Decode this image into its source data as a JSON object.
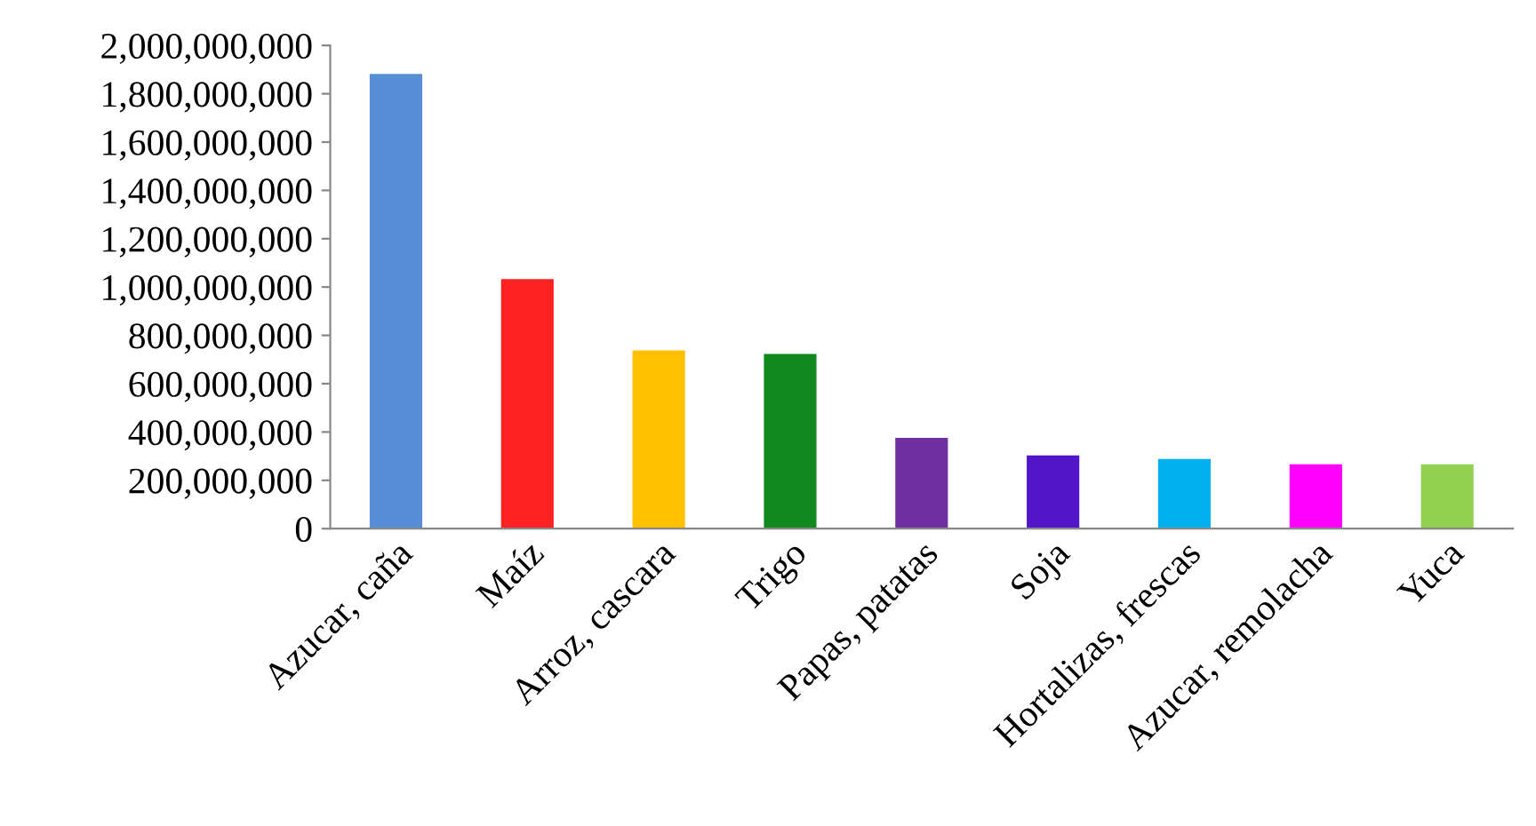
{
  "chart_data": {
    "type": "bar",
    "categories": [
      "Azucar, caña",
      "Maíz",
      "Arroz, cascara",
      "Trigo",
      "Papas, patatas",
      "Soja",
      "Hortalizas, frescas",
      "Azucar, remolacha",
      "Yuca"
    ],
    "values": [
      1882000000,
      1033000000,
      738000000,
      723000000,
      376000000,
      303000000,
      288000000,
      266000000,
      266000000
    ],
    "colors": [
      "#558ed5",
      "#ff2222",
      "#ffc000",
      "#12891f",
      "#7030a0",
      "#5216c8",
      "#00b0f0",
      "#ff00ff",
      "#92d050"
    ],
    "ylim": [
      0,
      2000000000
    ],
    "yticks": [
      {
        "value": 0,
        "label": "0"
      },
      {
        "value": 200000000,
        "label": "200,000,000"
      },
      {
        "value": 400000000,
        "label": "400,000,000"
      },
      {
        "value": 600000000,
        "label": "600,000,000"
      },
      {
        "value": 800000000,
        "label": "800,000,000"
      },
      {
        "value": 1000000000,
        "label": "1,000,000,000"
      },
      {
        "value": 1200000000,
        "label": "1,200,000,000"
      },
      {
        "value": 1400000000,
        "label": "1,400,000,000"
      },
      {
        "value": 1600000000,
        "label": "1,600,000,000"
      },
      {
        "value": 1800000000,
        "label": "1,800,000,000"
      },
      {
        "value": 2000000000,
        "label": "2,000,000,000"
      }
    ],
    "grid": false
  }
}
